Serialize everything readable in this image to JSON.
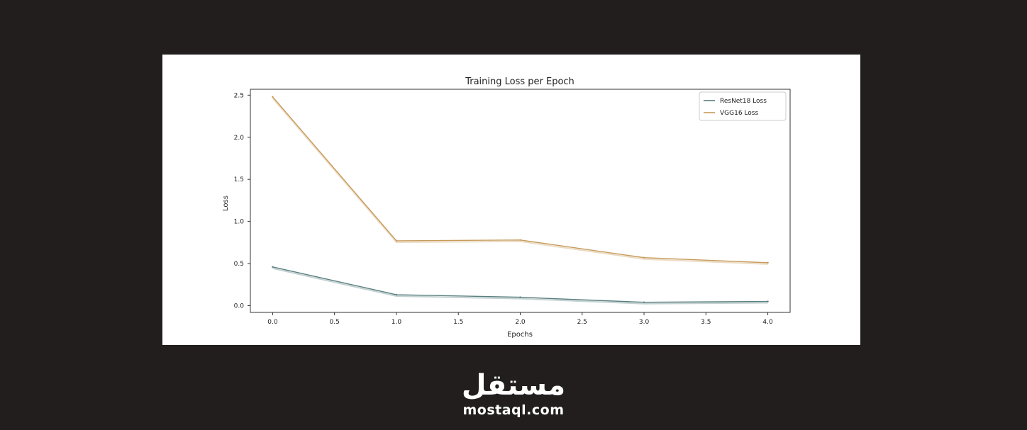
{
  "chart_data": {
    "type": "line",
    "title": "Training Loss per Epoch",
    "xlabel": "Epochs",
    "ylabel": "Loss",
    "xlim": [
      -0.18,
      4.18
    ],
    "ylim": [
      -0.08,
      2.57
    ],
    "x_ticks": [
      "0.0",
      "0.5",
      "1.0",
      "1.5",
      "2.0",
      "2.5",
      "3.0",
      "3.5",
      "4.0"
    ],
    "y_ticks": [
      "0.0",
      "0.5",
      "1.0",
      "1.5",
      "2.0",
      "2.5"
    ],
    "legend_position": "top-right",
    "grid": false,
    "x": [
      0,
      1,
      2,
      3,
      4
    ],
    "series": [
      {
        "name": "ResNet18 Loss",
        "values": [
          0.46,
          0.13,
          0.1,
          0.04,
          0.05
        ],
        "color": "#5a7f7f"
      },
      {
        "name": "VGG16 Loss",
        "values": [
          2.48,
          0.77,
          0.78,
          0.57,
          0.51
        ],
        "color": "#c79a5a"
      }
    ]
  },
  "brand": {
    "arabic": "مستقل",
    "url": "mostaql.com"
  }
}
